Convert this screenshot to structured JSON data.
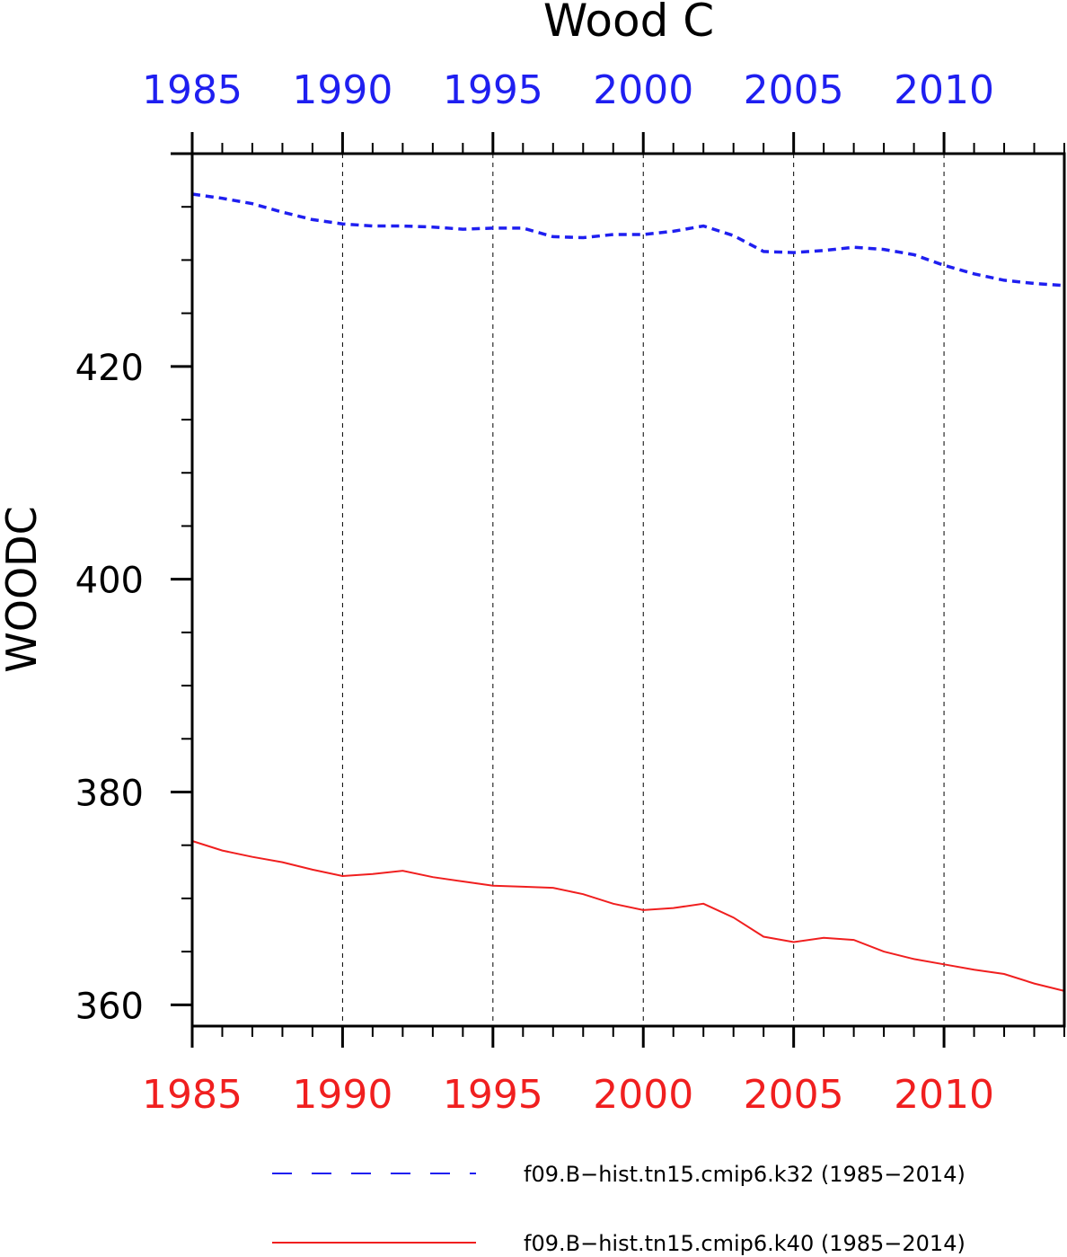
{
  "chart_data": {
    "type": "line",
    "title": "Wood C",
    "ylabel": "WOODC",
    "xlabel": "",
    "xlim": [
      1985,
      2014
    ],
    "ylim": [
      358,
      440
    ],
    "x_ticks": [
      "1985",
      "1990",
      "1995",
      "2000",
      "2005",
      "2010"
    ],
    "y_ticks": [
      "360",
      "380",
      "400",
      "420"
    ],
    "grid": "vertical dashed at major x ticks",
    "legend_position": "bottom",
    "x": [
      1985,
      1986,
      1987,
      1988,
      1989,
      1990,
      1991,
      1992,
      1993,
      1994,
      1995,
      1996,
      1997,
      1998,
      1999,
      2000,
      2001,
      2002,
      2003,
      2004,
      2005,
      2006,
      2007,
      2008,
      2009,
      2010,
      2011,
      2012,
      2013,
      2014
    ],
    "series": [
      {
        "name": "f09.B−hist.tn15.cmip6.k32 (1985−2014)",
        "color": "#1f1ff0",
        "style": "dashed",
        "axis_color": "top",
        "values": [
          436.2,
          435.8,
          435.3,
          434.5,
          433.8,
          433.4,
          433.2,
          433.2,
          433.1,
          432.9,
          433.0,
          433.0,
          432.2,
          432.1,
          432.4,
          432.4,
          432.7,
          433.2,
          432.3,
          430.8,
          430.7,
          430.9,
          431.2,
          431.0,
          430.5,
          429.5,
          428.7,
          428.1,
          427.8,
          427.6
        ]
      },
      {
        "name": "f09.B−hist.tn15.cmip6.k40 (1985−2014)",
        "color": "#f01f1f",
        "style": "solid",
        "axis_color": "bottom",
        "values": [
          375.4,
          374.5,
          373.9,
          373.4,
          372.7,
          372.1,
          372.3,
          372.6,
          372.0,
          371.6,
          371.2,
          371.1,
          371.0,
          370.4,
          369.5,
          368.9,
          369.1,
          369.5,
          368.2,
          366.4,
          365.9,
          366.3,
          366.1,
          365.0,
          364.3,
          363.8,
          363.3,
          362.9,
          362.0,
          361.3
        ]
      }
    ]
  }
}
